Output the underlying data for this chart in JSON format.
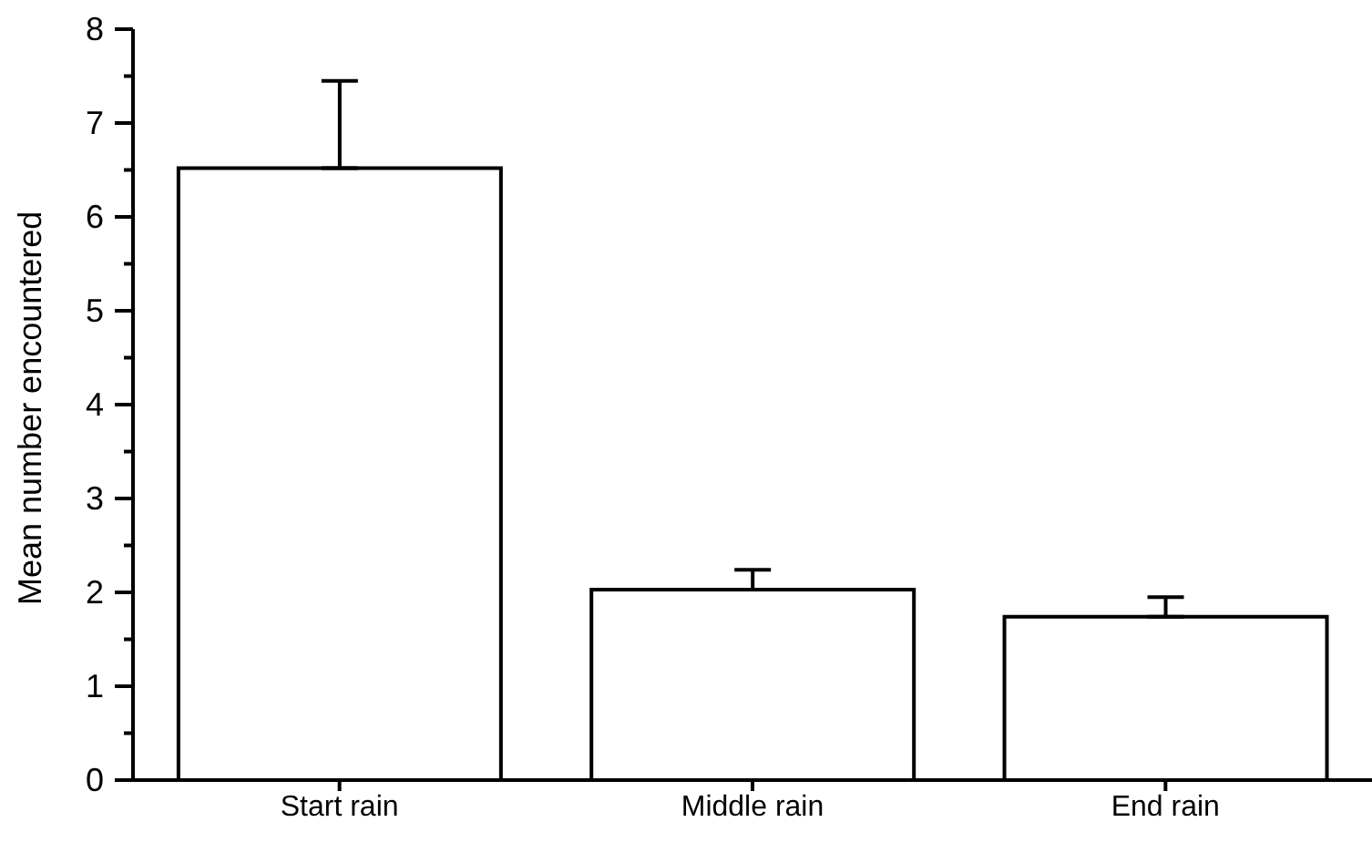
{
  "chart_data": {
    "type": "bar",
    "ylabel": "Mean number encountered",
    "categories": [
      "Start rain",
      "Middle rain",
      "End rain"
    ],
    "values": [
      6.52,
      2.03,
      1.74
    ],
    "errors": [
      [
        6.52,
        7.45
      ],
      [
        2.03,
        2.24
      ],
      [
        1.74,
        1.95
      ]
    ],
    "color": "#ffffff",
    "ylim": [
      0,
      8
    ],
    "yticks": [
      0,
      {
        "value": 0.5,
        "label": null
      },
      1,
      {
        "value": 1.5,
        "label": null
      },
      2,
      {
        "value": 2.5,
        "label": null
      },
      3,
      {
        "value": 3.5,
        "label": null
      },
      4,
      {
        "value": 4.5,
        "label": null
      },
      5,
      {
        "value": 5.5,
        "label": null
      },
      6,
      {
        "value": 6.5,
        "label": null
      },
      7,
      {
        "value": 7.5,
        "label": null
      },
      8
    ],
    "grid": false,
    "legend": false
  }
}
